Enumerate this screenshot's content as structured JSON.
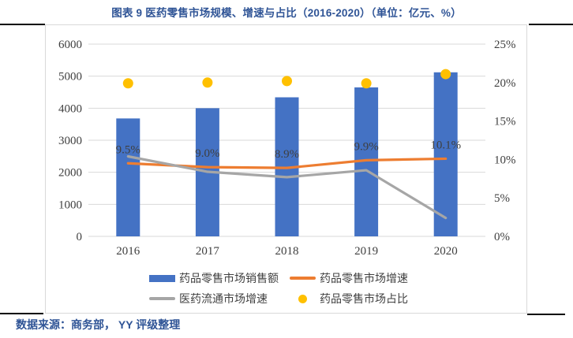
{
  "title": "图表 9 医药零售市场规模、增速与占比（2016-2020）（单位：亿元、%）",
  "source_note": "数据来源：商务部， YY 评级整理",
  "colors": {
    "title_text": "#2F5496",
    "bar": "#4472C4",
    "retail_growth_line": "#ED7D31",
    "circulation_growth_line": "#A6A6A6",
    "share_dot": "#FFC000",
    "grid": "#D9D9D9",
    "axis_text": "#404040",
    "data_label_text": "#3F3F3F",
    "frame_border": "#D9D9D9",
    "table_rule": "#000000"
  },
  "chart_data": {
    "type": "combo",
    "categories": [
      "2016",
      "2017",
      "2018",
      "2019",
      "2020"
    ],
    "series": [
      {
        "name": "药品零售市场销售额",
        "type": "bar",
        "axis": "left",
        "color": "#4472C4",
        "values": [
          3680,
          4000,
          4340,
          4650,
          5120
        ]
      },
      {
        "name": "药品零售市场增速",
        "type": "line",
        "axis": "right",
        "color": "#ED7D31",
        "values": [
          9.5,
          9.0,
          8.9,
          9.9,
          10.1
        ],
        "point_labels": [
          "9.5%",
          "9.0%",
          "8.9%",
          "9.9%",
          "10.1%"
        ]
      },
      {
        "name": "医药流通市场增速",
        "type": "line",
        "axis": "right",
        "color": "#A6A6A6",
        "values": [
          10.4,
          8.4,
          7.7,
          8.6,
          2.4
        ]
      },
      {
        "name": "药品零售市场占比",
        "type": "scatter",
        "axis": "right",
        "color": "#FFC000",
        "values": [
          19.9,
          20.0,
          20.2,
          19.9,
          21.1
        ]
      }
    ],
    "left_axis": {
      "min": 0,
      "max": 6000,
      "tick_labels": [
        "6000",
        "5000",
        "4000",
        "3000",
        "2000",
        "1000",
        "0"
      ]
    },
    "right_axis": {
      "min": 0,
      "max": 25,
      "tick_labels": [
        "25%",
        "20%",
        "15%",
        "10%",
        "5%",
        "0%"
      ]
    },
    "grid": true,
    "legend_position": "bottom"
  }
}
